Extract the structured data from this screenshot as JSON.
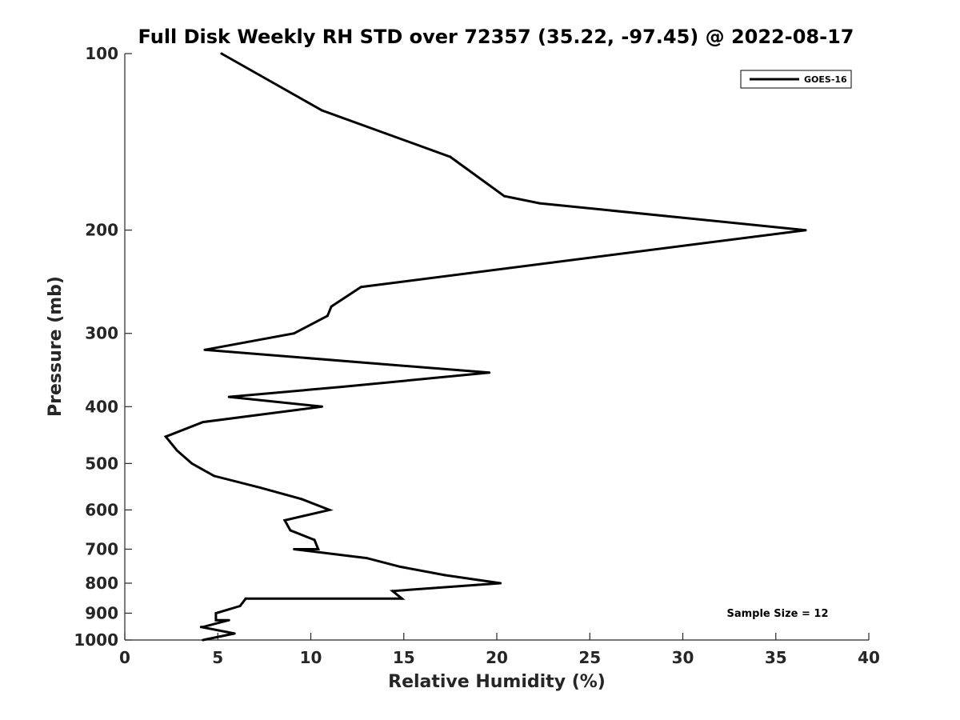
{
  "chart_data": {
    "type": "line",
    "title": "Full Disk Weekly RH STD over 72357 (35.22, -97.45) @ 2022-08-17",
    "xlabel": "Relative Humidity (%)",
    "ylabel": "Pressure (mb)",
    "xlim": [
      0,
      40
    ],
    "ylim": [
      100,
      1000
    ],
    "yscale": "log",
    "yinverted": true,
    "x_ticks": [
      0,
      5,
      10,
      15,
      20,
      25,
      30,
      35,
      40
    ],
    "x_tick_labels": [
      "0",
      "5",
      "10",
      "15",
      "20",
      "25",
      "30",
      "35",
      "40"
    ],
    "y_ticks": [
      100,
      200,
      300,
      400,
      500,
      600,
      700,
      800,
      900,
      1000
    ],
    "y_tick_labels": [
      "100",
      "200",
      "300",
      "400",
      "500",
      "600",
      "700",
      "800",
      "900",
      "1000"
    ],
    "grid": false,
    "legend": {
      "position": "top-right",
      "entries": [
        "GOES-16"
      ]
    },
    "annotation": "Sample Size = 12",
    "series": [
      {
        "name": "GOES-16",
        "color": "#000000",
        "points": [
          [
            5.2,
            100
          ],
          [
            10.6,
            125
          ],
          [
            17.5,
            150
          ],
          [
            20.4,
            175
          ],
          [
            22.3,
            180
          ],
          [
            36.6,
            200
          ],
          [
            12.7,
            250
          ],
          [
            11.1,
            270
          ],
          [
            10.9,
            280
          ],
          [
            9.1,
            300
          ],
          [
            4.3,
            320
          ],
          [
            19.6,
            350
          ],
          [
            11.7,
            370
          ],
          [
            5.6,
            385
          ],
          [
            10.6,
            400
          ],
          [
            4.2,
            425
          ],
          [
            2.2,
            450
          ],
          [
            2.8,
            475
          ],
          [
            3.6,
            500
          ],
          [
            4.8,
            525
          ],
          [
            7.3,
            550
          ],
          [
            9.5,
            575
          ],
          [
            11.0,
            600
          ],
          [
            8.6,
            625
          ],
          [
            8.9,
            650
          ],
          [
            10.2,
            675
          ],
          [
            10.4,
            700
          ],
          [
            9.1,
            700
          ],
          [
            13.0,
            725
          ],
          [
            14.8,
            750
          ],
          [
            17.2,
            775
          ],
          [
            20.2,
            800
          ],
          [
            14.4,
            825
          ],
          [
            14.9,
            850
          ],
          [
            6.5,
            850
          ],
          [
            6.2,
            875
          ],
          [
            4.9,
            900
          ],
          [
            4.9,
            925
          ],
          [
            5.6,
            925
          ],
          [
            4.2,
            950
          ],
          [
            4.1,
            950
          ],
          [
            5.9,
            975
          ],
          [
            4.2,
            1000
          ]
        ]
      }
    ]
  }
}
